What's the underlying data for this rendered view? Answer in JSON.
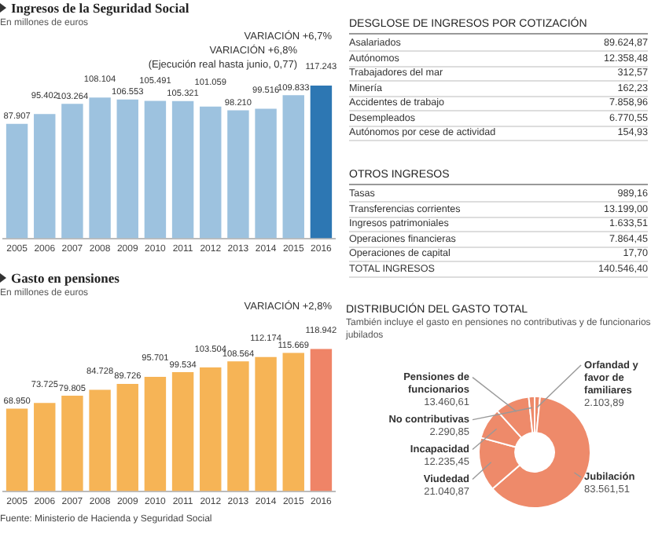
{
  "chart_data": [
    {
      "type": "bar",
      "title": "Ingresos de la Seguridad Social",
      "subtitle": "En millones de euros",
      "categories": [
        "2005",
        "2006",
        "2007",
        "2008",
        "2009",
        "2010",
        "2011",
        "2012",
        "2013",
        "2014",
        "2015",
        "2016"
      ],
      "values": [
        87907,
        95402,
        103264,
        108104,
        106553,
        105491,
        105321,
        101059,
        98210,
        99516,
        109833,
        117243
      ],
      "value_labels": [
        "87.907",
        "95.402",
        "103.264",
        "108.104",
        "106.553",
        "105.491",
        "105.321",
        "101.059",
        "98.210",
        "99.516",
        "109.833",
        "117.243"
      ],
      "colors": [
        "#9dc2df",
        "#9dc2df",
        "#9dc2df",
        "#9dc2df",
        "#9dc2df",
        "#9dc2df",
        "#9dc2df",
        "#9dc2df",
        "#9dc2df",
        "#9dc2df",
        "#9dc2df",
        "#2d77b3"
      ],
      "grid": false,
      "annotations": [
        "VARIACIÓN +6,7%",
        "VARIACIÓN +6,8%",
        "(Ejecución real hasta junio, 0,77)"
      ]
    },
    {
      "type": "other",
      "title": "DESGLOSE DE INGRESOS POR COTIZACIÓN",
      "categories": [
        "Asalariados",
        "Autónomos",
        "Trabajadores del mar",
        "Minería",
        "Accidentes de trabajo",
        "Desempleados",
        "Autónomos por cese de actividad"
      ],
      "values": [
        89624.87,
        12358.48,
        312.57,
        162.23,
        7858.96,
        6770.55,
        154.93
      ],
      "value_labels": [
        "89.624,87",
        "12.358,48",
        "312,57",
        "162,23",
        "7.858,96",
        "6.770,55",
        "154,93"
      ]
    },
    {
      "type": "other",
      "title": "OTROS INGRESOS",
      "categories": [
        "Tasas",
        "Transferencias corrientes",
        "Ingresos patrimoniales",
        "Operaciones financieras",
        "Operaciones de capital",
        "TOTAL INGRESOS"
      ],
      "values": [
        989.16,
        13199.0,
        1633.51,
        7864.45,
        17.7,
        140546.4
      ],
      "value_labels": [
        "989,16",
        "13.199,00",
        "1.633,51",
        "7.864,45",
        "17,70",
        "140.546,40"
      ]
    },
    {
      "type": "bar",
      "title": "Gasto en pensiones",
      "subtitle": "En millones de euros",
      "categories": [
        "2005",
        "2006",
        "2007",
        "2008",
        "2009",
        "2010",
        "2011",
        "2012",
        "2013",
        "2014",
        "2015",
        "2016"
      ],
      "values": [
        68950,
        73725,
        79805,
        84728,
        89726,
        95701,
        99534,
        103504,
        108564,
        112174,
        115669,
        118942
      ],
      "value_labels": [
        "68.950",
        "73.725",
        "79.805",
        "84.728",
        "89.726",
        "95.701",
        "99.534",
        "103.504",
        "108.564",
        "112.174",
        "115.669",
        "118.942"
      ],
      "colors": [
        "#f6b456",
        "#f6b456",
        "#f6b456",
        "#f6b456",
        "#f6b456",
        "#f6b456",
        "#f6b456",
        "#f6b456",
        "#f6b456",
        "#f6b456",
        "#f6b456",
        "#ef8467"
      ],
      "grid": false,
      "annotations": [
        "VARIACIÓN +2,8%",
        "Fuente: Ministerio de Hacienda y Seguridad Social"
      ]
    },
    {
      "type": "donut",
      "title": "DISTRIBUCIÓN DEL GASTO TOTAL",
      "subtitle": "También incluye el gasto en pensiones no contributivas y de funcionarios jubilados",
      "categories": [
        "Orfandad y favor de familiares",
        "Jubilación",
        "Viudedad",
        "Incapacidad",
        "Pensiones de funcionarios",
        "No contributivas"
      ],
      "values": [
        2103.89,
        83561.51,
        21040.87,
        12235.45,
        13460.61,
        2290.85
      ],
      "value_labels": [
        "2.103,89",
        "83.561,51",
        "21.040,87",
        "12.235,45",
        "13.460,61",
        "2.290,85"
      ],
      "colors": [
        "#ee8a6a",
        "#ee8a6a",
        "#ee8a6a",
        "#ee8a6a",
        "#ee8a6a",
        "#ee8a6a"
      ]
    }
  ]
}
